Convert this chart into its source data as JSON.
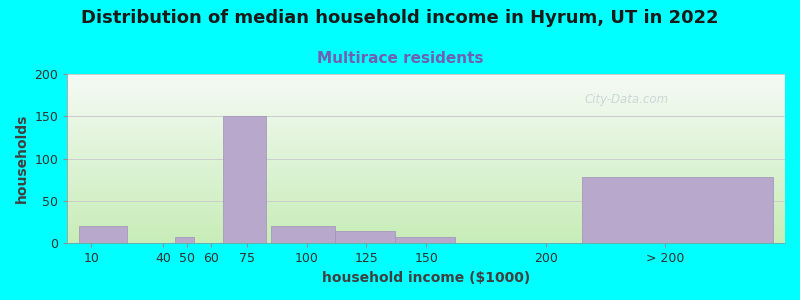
{
  "title": "Distribution of median household income in Hyrum, UT in 2022",
  "subtitle": "Multirace residents",
  "xlabel": "household income ($1000)",
  "ylabel": "households",
  "background_color": "#00FFFF",
  "plot_bg_gradient_top": "#f5faf5",
  "plot_bg_gradient_bottom": "#c8edb8",
  "bar_color": "#b8a8cc",
  "bar_edge_color": "#a090b8",
  "bar_linewidth": 0.5,
  "categories_labels": [
    "10",
    "40",
    "50",
    "60",
    "75",
    "100",
    "125",
    "150",
    "200",
    "> 200"
  ],
  "tick_xpos": [
    10,
    40,
    50,
    60,
    75,
    100,
    125,
    150,
    200,
    250
  ],
  "bar_lefts": [
    5,
    27,
    45,
    55,
    65,
    85,
    112,
    137,
    165,
    215
  ],
  "bar_rights": [
    25,
    45,
    53,
    64,
    83,
    112,
    137,
    162,
    215,
    295
  ],
  "values": [
    20,
    0,
    8,
    0,
    150,
    20,
    15,
    8,
    0,
    78
  ],
  "xlim": [
    0,
    300
  ],
  "ylim": [
    0,
    200
  ],
  "yticks": [
    0,
    50,
    100,
    150,
    200
  ],
  "title_fontsize": 13,
  "subtitle_fontsize": 11,
  "subtitle_color": "#7060b0",
  "axis_label_fontsize": 10,
  "tick_fontsize": 9,
  "watermark_text": "City-Data.com",
  "watermark_color": "#b8c0cc",
  "watermark_alpha": 0.6
}
